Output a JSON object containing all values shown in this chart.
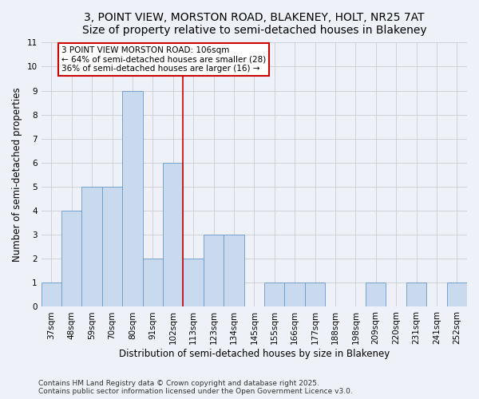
{
  "title_line1": "3, POINT VIEW, MORSTON ROAD, BLAKENEY, HOLT, NR25 7AT",
  "title_line2": "Size of property relative to semi-detached houses in Blakeney",
  "xlabel": "Distribution of semi-detached houses by size in Blakeney",
  "ylabel": "Number of semi-detached properties",
  "categories": [
    "37sqm",
    "48sqm",
    "59sqm",
    "70sqm",
    "80sqm",
    "91sqm",
    "102sqm",
    "113sqm",
    "123sqm",
    "134sqm",
    "145sqm",
    "155sqm",
    "166sqm",
    "177sqm",
    "188sqm",
    "198sqm",
    "209sqm",
    "220sqm",
    "231sqm",
    "241sqm",
    "252sqm"
  ],
  "values": [
    1,
    4,
    5,
    5,
    9,
    2,
    6,
    2,
    3,
    3,
    0,
    1,
    1,
    1,
    0,
    0,
    1,
    0,
    1,
    0,
    1
  ],
  "bar_color": "#c9d9ee",
  "bar_edge_color": "#6699cc",
  "annotation_text": "3 POINT VIEW MORSTON ROAD: 106sqm\n← 64% of semi-detached houses are smaller (28)\n36% of semi-detached houses are larger (16) →",
  "annotation_box_color": "#ffffff",
  "annotation_box_edge_color": "#cc0000",
  "vline_color": "#cc0000",
  "vline_bin_index": 6,
  "ylim": [
    0,
    11
  ],
  "yticks": [
    0,
    1,
    2,
    3,
    4,
    5,
    6,
    7,
    8,
    9,
    10,
    11
  ],
  "grid_color": "#cccccc",
  "background_color": "#eef2f8",
  "footer_text": "Contains HM Land Registry data © Crown copyright and database right 2025.\nContains public sector information licensed under the Open Government Licence v3.0.",
  "title_fontsize": 10,
  "label_fontsize": 8.5,
  "tick_fontsize": 7.5,
  "annotation_fontsize": 7.5,
  "footer_fontsize": 6.5
}
